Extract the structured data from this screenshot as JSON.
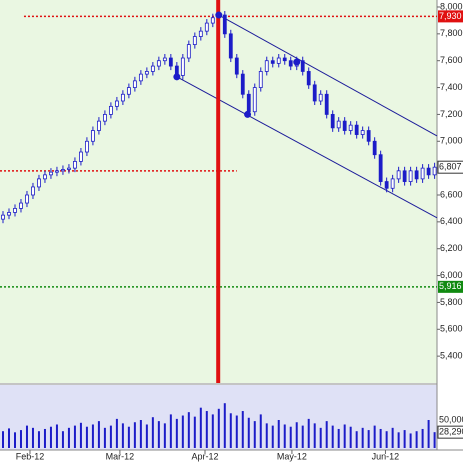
{
  "chart_data": {
    "type": "candlestick",
    "open": [
      6420,
      6450,
      6470,
      6500,
      6540,
      6600,
      6660,
      6720,
      6750,
      6770,
      6780,
      6790,
      6800,
      6850,
      6920,
      7000,
      7080,
      7150,
      7200,
      7260,
      7300,
      7350,
      7400,
      7450,
      7500,
      7520,
      7560,
      7600,
      7620,
      7560,
      7490,
      7620,
      7720,
      7780,
      7820,
      7880,
      7920,
      7940,
      7800,
      7620,
      7500,
      7350,
      7220,
      7400,
      7520,
      7600,
      7580,
      7620,
      7600,
      7560,
      7600,
      7520,
      7420,
      7300,
      7350,
      7200,
      7100,
      7150,
      7080,
      7120,
      7050,
      7080,
      7000,
      6900,
      6700,
      6650,
      6720,
      6780,
      6700,
      6780,
      6720,
      6800,
      6750
    ],
    "high": [
      6480,
      6500,
      6530,
      6570,
      6630,
      6690,
      6750,
      6780,
      6800,
      6810,
      6820,
      6830,
      6880,
      6950,
      7030,
      7110,
      7180,
      7230,
      7290,
      7330,
      7380,
      7430,
      7480,
      7530,
      7550,
      7590,
      7630,
      7650,
      7650,
      7590,
      7650,
      7750,
      7810,
      7850,
      7910,
      7950,
      7970,
      7970,
      7830,
      7650,
      7530,
      7380,
      7430,
      7550,
      7630,
      7630,
      7650,
      7650,
      7630,
      7630,
      7630,
      7550,
      7450,
      7380,
      7380,
      7230,
      7180,
      7180,
      7150,
      7150,
      7110,
      7110,
      7030,
      6930,
      6730,
      6750,
      6810,
      6810,
      6810,
      6810,
      6830,
      6830,
      6840
    ],
    "low": [
      6390,
      6420,
      6440,
      6470,
      6510,
      6570,
      6630,
      6690,
      6720,
      6740,
      6750,
      6760,
      6770,
      6820,
      6890,
      6970,
      7050,
      7120,
      7170,
      7230,
      7270,
      7320,
      7370,
      7420,
      7470,
      7490,
      7530,
      7570,
      7530,
      7460,
      7460,
      7590,
      7690,
      7750,
      7790,
      7850,
      7890,
      7770,
      7590,
      7470,
      7320,
      7190,
      7190,
      7370,
      7490,
      7550,
      7550,
      7570,
      7530,
      7530,
      7490,
      7390,
      7270,
      7270,
      7170,
      7070,
      7070,
      7050,
      7050,
      7020,
      7020,
      6970,
      6870,
      6670,
      6620,
      6620,
      6690,
      6670,
      6670,
      6690,
      6690,
      6720,
      6720
    ],
    "close": [
      6450,
      6470,
      6500,
      6540,
      6600,
      6660,
      6720,
      6750,
      6770,
      6780,
      6790,
      6800,
      6850,
      6920,
      7000,
      7080,
      7150,
      7200,
      7260,
      7300,
      7350,
      7400,
      7450,
      7500,
      7520,
      7560,
      7600,
      7620,
      7560,
      7490,
      7620,
      7720,
      7780,
      7820,
      7880,
      7920,
      7940,
      7800,
      7620,
      7500,
      7350,
      7220,
      7400,
      7520,
      7600,
      7580,
      7620,
      7600,
      7560,
      7600,
      7520,
      7420,
      7300,
      7350,
      7200,
      7100,
      7150,
      7080,
      7120,
      7050,
      7080,
      7000,
      6900,
      6700,
      6650,
      6720,
      6780,
      6700,
      6780,
      6720,
      6800,
      6750,
      6807
    ],
    "volume": [
      30000,
      35000,
      28000,
      32000,
      40000,
      36000,
      30000,
      34000,
      38000,
      42000,
      30000,
      36000,
      40000,
      45000,
      38000,
      42000,
      48000,
      36000,
      40000,
      52000,
      44000,
      38000,
      46000,
      50000,
      42000,
      55000,
      48000,
      44000,
      60000,
      52000,
      58000,
      64000,
      56000,
      72000,
      66000,
      60000,
      70000,
      80000,
      62000,
      58000,
      66000,
      54000,
      48000,
      60000,
      44000,
      40000,
      50000,
      42000,
      38000,
      46000,
      40000,
      52000,
      44000,
      36000,
      48000,
      40000,
      34000,
      42000,
      38000,
      30000,
      36000,
      32000,
      40000,
      34000,
      30000,
      36000,
      28000,
      32000,
      26000,
      30000,
      34000,
      50000,
      28290
    ],
    "color": "#1c1cc8",
    "xlim": [
      -0.5,
      72.4
    ],
    "xticks": [
      {
        "value": 4.5,
        "label": "Feb-12"
      },
      {
        "value": 19.5,
        "label": "Mar-12"
      },
      {
        "value": 33.7,
        "label": "Apr-12"
      },
      {
        "value": 48.2,
        "label": "May-12"
      },
      {
        "value": 63.8,
        "label": "Jun-12"
      }
    ],
    "ylim": [
      5200,
      8052
    ],
    "yticks": [
      {
        "value": 5400,
        "label": "5,400"
      },
      {
        "value": 5600,
        "label": "5,600"
      },
      {
        "value": 5800,
        "label": "5,800"
      },
      {
        "value": 6000,
        "label": "6,000"
      },
      {
        "value": 6200,
        "label": "6,200"
      },
      {
        "value": 6400,
        "label": "6,400"
      },
      {
        "value": 6600,
        "label": "6,600"
      },
      {
        "value": 6800,
        "label": "6,800"
      },
      {
        "value": 7000,
        "label": "7,000"
      },
      {
        "value": 7200,
        "label": "7,200"
      },
      {
        "value": 7400,
        "label": "7,400"
      },
      {
        "value": 7600,
        "label": "7,600"
      },
      {
        "value": 7800,
        "label": "7,800"
      },
      {
        "value": 8000,
        "label": "8,000"
      }
    ],
    "volume_ylim": [
      0,
      112500
    ],
    "volume_yticks": [
      {
        "value": 50000,
        "label": "50,000"
      }
    ],
    "volume_last_label": {
      "value": 28290,
      "label": "28,290"
    },
    "last_price_label": {
      "value": 6807,
      "label": "6,807"
    },
    "hlines": [
      {
        "value": 7930,
        "label": "7,930",
        "color": "#e01010",
        "from": 3.5
      },
      {
        "value": 6780,
        "color": "#e01010",
        "from": -0.5,
        "to": 39
      },
      {
        "value": 5916,
        "label": "5,916",
        "color": "#108a10",
        "from": -0.5
      }
    ],
    "vline": 35.9,
    "trendlines": [
      {
        "x": [
          36,
          72.4
        ],
        "y": [
          7940,
          7040
        ]
      },
      {
        "x": [
          29,
          72.4
        ],
        "y": [
          7480,
          6430
        ]
      }
    ],
    "pivots": {
      "x": [
        29,
        36,
        40.8,
        49
      ],
      "y": [
        7480,
        7940,
        7200,
        7590
      ]
    }
  }
}
